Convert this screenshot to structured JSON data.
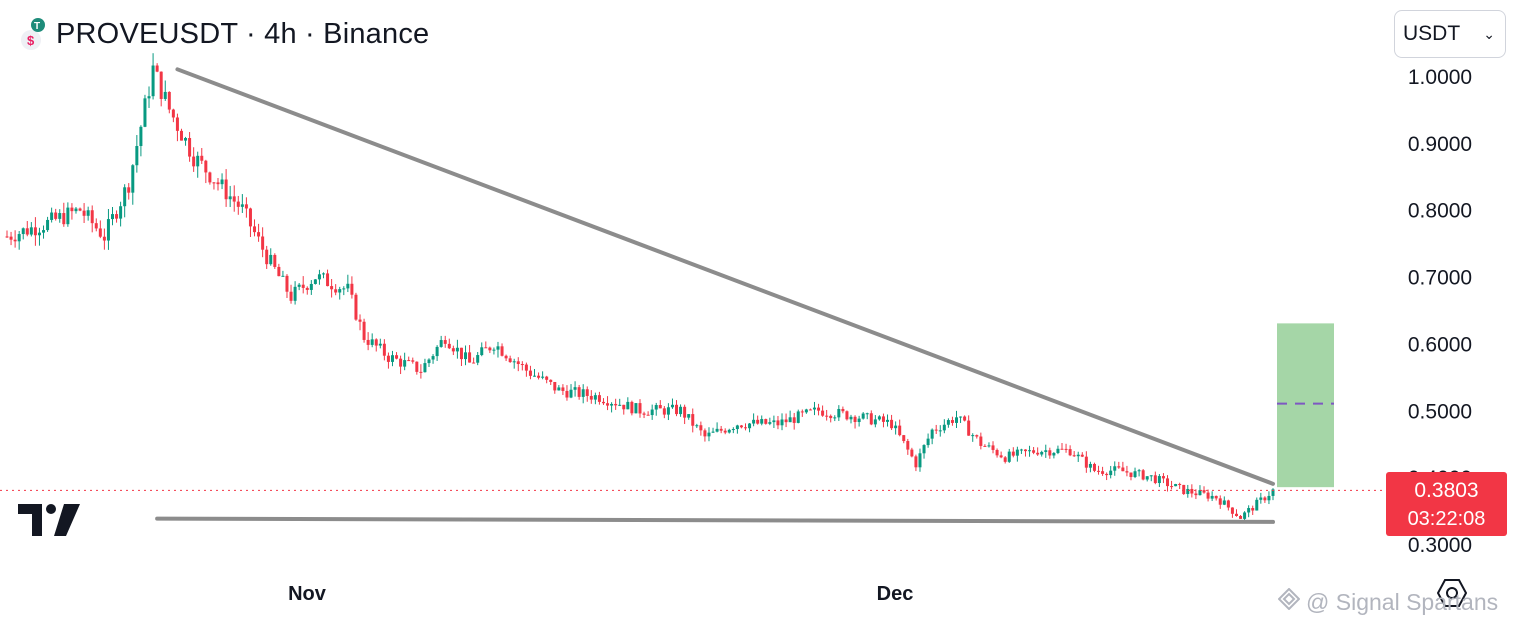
{
  "header": {
    "title": "PROVEUSDT · 4h · Binance",
    "logo_icon": "prove-coin-icon"
  },
  "currency_select": {
    "value": "USDT"
  },
  "price_tag": {
    "price": "0.3803",
    "countdown": "03:22:08",
    "color": "#f23645"
  },
  "watermark": {
    "text": "@ Signal Spartans"
  },
  "chart_data": {
    "type": "candlestick",
    "symbol": "PROVEUSDT",
    "interval": "4h",
    "exchange": "Binance",
    "x_tick_labels": [
      "Nov",
      "Dec"
    ],
    "y_tick_labels": [
      "1.0000",
      "0.9000",
      "0.8000",
      "0.7000",
      "0.6000",
      "0.5000",
      "0.4000",
      "0.3000"
    ],
    "ylim": [
      0.28,
      1.03
    ],
    "current_price": 0.3803,
    "up_color": "#089981",
    "down_color": "#f23645",
    "price_path": [
      {
        "i": 0,
        "v": 0.76
      },
      {
        "i": 10,
        "v": 0.78
      },
      {
        "i": 18,
        "v": 0.8
      },
      {
        "i": 24,
        "v": 0.76
      },
      {
        "i": 30,
        "v": 0.84
      },
      {
        "i": 36,
        "v": 1.01
      },
      {
        "i": 40,
        "v": 0.95
      },
      {
        "i": 46,
        "v": 0.88
      },
      {
        "i": 52,
        "v": 0.84
      },
      {
        "i": 58,
        "v": 0.8
      },
      {
        "i": 64,
        "v": 0.73
      },
      {
        "i": 70,
        "v": 0.67
      },
      {
        "i": 76,
        "v": 0.7
      },
      {
        "i": 84,
        "v": 0.68
      },
      {
        "i": 88,
        "v": 0.61
      },
      {
        "i": 94,
        "v": 0.58
      },
      {
        "i": 102,
        "v": 0.56
      },
      {
        "i": 108,
        "v": 0.61
      },
      {
        "i": 114,
        "v": 0.57
      },
      {
        "i": 120,
        "v": 0.6
      },
      {
        "i": 128,
        "v": 0.56
      },
      {
        "i": 136,
        "v": 0.53
      },
      {
        "i": 146,
        "v": 0.52
      },
      {
        "i": 156,
        "v": 0.5
      },
      {
        "i": 166,
        "v": 0.5
      },
      {
        "i": 172,
        "v": 0.46
      },
      {
        "i": 180,
        "v": 0.48
      },
      {
        "i": 190,
        "v": 0.48
      },
      {
        "i": 200,
        "v": 0.5
      },
      {
        "i": 210,
        "v": 0.49
      },
      {
        "i": 218,
        "v": 0.48
      },
      {
        "i": 224,
        "v": 0.42
      },
      {
        "i": 228,
        "v": 0.47
      },
      {
        "i": 234,
        "v": 0.49
      },
      {
        "i": 240,
        "v": 0.45
      },
      {
        "i": 246,
        "v": 0.43
      },
      {
        "i": 254,
        "v": 0.44
      },
      {
        "i": 262,
        "v": 0.44
      },
      {
        "i": 268,
        "v": 0.41
      },
      {
        "i": 274,
        "v": 0.41
      },
      {
        "i": 282,
        "v": 0.4
      },
      {
        "i": 290,
        "v": 0.38
      },
      {
        "i": 298,
        "v": 0.37
      },
      {
        "i": 304,
        "v": 0.34
      },
      {
        "i": 308,
        "v": 0.36
      },
      {
        "i": 312,
        "v": 0.38
      }
    ],
    "candle_count": 313,
    "annotations": [
      {
        "kind": "trendline",
        "name": "descending-resistance",
        "from": {
          "i": 42,
          "v": 1.01
        },
        "to": {
          "i": 312,
          "v": 0.39
        }
      },
      {
        "kind": "trendline",
        "name": "flat-support",
        "from": {
          "i": 37,
          "v": 0.338
        },
        "to": {
          "i": 312,
          "v": 0.333
        }
      },
      {
        "kind": "target-box",
        "name": "projection-zone",
        "low": 0.385,
        "high": 0.63,
        "mid": 0.51,
        "color": "#a5d6a7"
      },
      {
        "kind": "price-line",
        "name": "current-price-line",
        "value": 0.3803,
        "color": "#f23645"
      }
    ]
  }
}
